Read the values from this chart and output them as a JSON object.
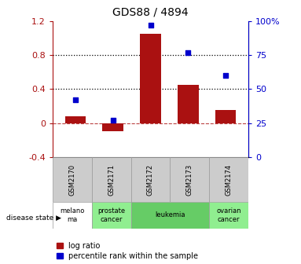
{
  "title": "GDS88 / 4894",
  "samples": [
    "GSM2170",
    "GSM2171",
    "GSM2172",
    "GSM2173",
    "GSM2174"
  ],
  "log_ratio": [
    0.08,
    -0.1,
    1.05,
    0.45,
    0.15
  ],
  "percentile_rank": [
    42,
    27,
    97,
    77,
    60
  ],
  "disease_states": [
    {
      "label": "melano\nma",
      "start": 0,
      "end": 1,
      "color": "#ffffff"
    },
    {
      "label": "prostate\ncancer",
      "start": 1,
      "end": 2,
      "color": "#90ee90"
    },
    {
      "label": "leukemia",
      "start": 2,
      "end": 4,
      "color": "#66cc66"
    },
    {
      "label": "ovarian\ncancer",
      "start": 4,
      "end": 5,
      "color": "#90ee90"
    }
  ],
  "bar_color": "#aa1111",
  "scatter_color": "#0000cc",
  "ylim_left": [
    -0.4,
    1.2
  ],
  "ylim_right": [
    0,
    100
  ],
  "yticks_left": [
    -0.4,
    0.0,
    0.4,
    0.8,
    1.2
  ],
  "yticks_right": [
    0,
    25,
    50,
    75,
    100
  ],
  "ytick_labels_left": [
    "-0.4",
    "0",
    "0.4",
    "0.8",
    "1.2"
  ],
  "ytick_labels_right": [
    "0",
    "25",
    "50",
    "75",
    "100%"
  ],
  "hline_y": [
    0.4,
    0.8
  ],
  "zero_line_y": 0.0,
  "bar_width": 0.55,
  "legend_log_ratio": "log ratio",
  "legend_percentile": "percentile rank within the sample",
  "disease_label": "disease state",
  "sample_box_color": "#cccccc",
  "title_fontsize": 10,
  "axis_label_fontsize": 8,
  "table_fontsize": 6,
  "legend_fontsize": 7
}
